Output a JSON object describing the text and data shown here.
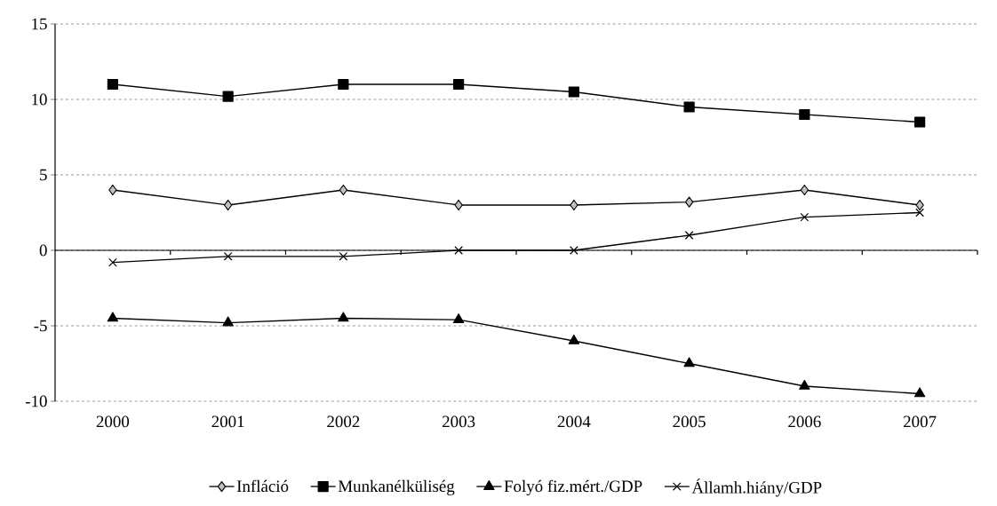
{
  "chart_data": {
    "type": "line",
    "categories": [
      "2000",
      "2001",
      "2002",
      "2003",
      "2004",
      "2005",
      "2006",
      "2007"
    ],
    "series": [
      {
        "name": "Infláció",
        "color": "#c0c0c0",
        "marker": "diamond",
        "values": [
          4,
          3,
          4,
          3,
          3,
          3.2,
          4,
          3
        ]
      },
      {
        "name": "Munkanélküliség",
        "color": "#000000",
        "marker": "square",
        "values": [
          11,
          10.2,
          11,
          11,
          10.5,
          9.5,
          9,
          8.5
        ]
      },
      {
        "name": "Folyó fiz.mért./GDP",
        "color": "#000000",
        "marker": "triangle",
        "values": [
          -4.5,
          -4.8,
          -4.5,
          -4.6,
          -6,
          -7.5,
          -9,
          -9.5
        ]
      },
      {
        "name": "Államh.hiány/GDP",
        "color": "#000000",
        "marker": "cross",
        "values": [
          -0.8,
          -0.4,
          -0.4,
          0,
          0,
          1,
          2.2,
          2.5
        ]
      }
    ],
    "ylim": [
      -10,
      15
    ],
    "yticks": [
      -10,
      -5,
      0,
      5,
      10,
      15
    ],
    "grid": "y",
    "legend": "bottom",
    "line_style": "solid"
  }
}
